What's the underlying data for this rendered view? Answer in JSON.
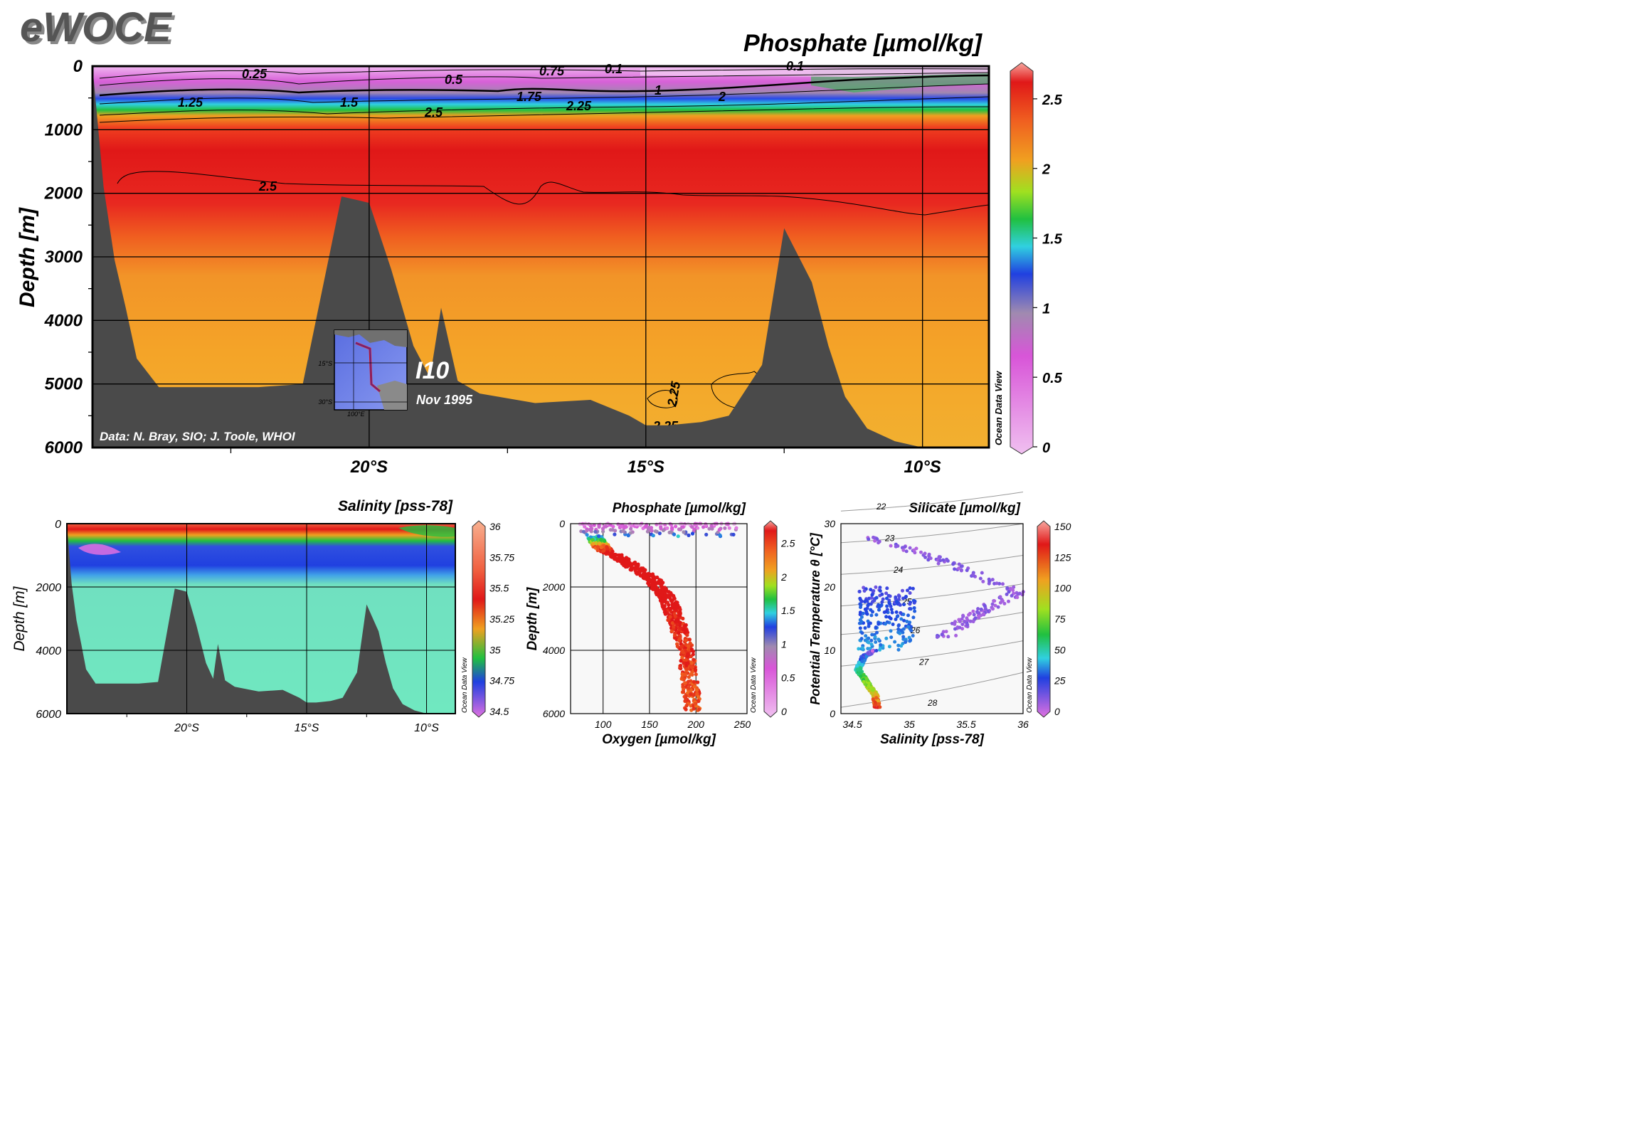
{
  "logo": "eWOCE",
  "colors": {
    "bathymetry": "#4a4a4a",
    "phosphate_scale": [
      "#e8a8e8",
      "#d855d8",
      "#a08ab0",
      "#2040e0",
      "#30d0e0",
      "#20c040",
      "#a0e020",
      "#f0a020",
      "#f06020",
      "#e01818",
      "#f8a8a8"
    ],
    "salinity_scale": [
      "#d855d8",
      "#2040e0",
      "#20c040",
      "#f0a020",
      "#e01818",
      "#f8b090"
    ]
  },
  "main_section": {
    "title": "Phosphate [µmol/kg]",
    "ylabel": "Depth [m]",
    "y_ticks": [
      "0",
      "1000",
      "2000",
      "3000",
      "4000",
      "5000",
      "6000"
    ],
    "x_ticks": [
      "20°S",
      "15°S",
      "10°S"
    ],
    "colorbar_ticks": [
      "2.5",
      "2",
      "1.5",
      "1",
      "0.5",
      "0"
    ],
    "contour_labels": [
      "0.25",
      "0.5",
      "0.75",
      "0.1",
      "0.1",
      "1.25",
      "1.5",
      "1",
      "1.75",
      "2.25",
      "2",
      "2.5",
      "2.5",
      "2.25",
      "2.25"
    ],
    "credit": "Data: N. Bray, SIO; J. Toole, WHOI",
    "section_name": "I10",
    "section_date": "Nov 1995",
    "odv_label": "Ocean Data View",
    "inset": {
      "lat_labels": [
        "15°S",
        "30°S"
      ],
      "lon_label": "100°E"
    }
  },
  "salinity_section": {
    "title": "Salinity [pss-78]",
    "ylabel": "Depth [m]",
    "y_ticks": [
      "0",
      "2000",
      "4000",
      "6000"
    ],
    "x_ticks": [
      "20°S",
      "15°S",
      "10°S"
    ],
    "colorbar_ticks": [
      "36",
      "35.75",
      "35.5",
      "35.25",
      "35",
      "34.75",
      "34.5"
    ],
    "odv_label": "Ocean Data View"
  },
  "oxygen_plot": {
    "title": "Phosphate [µmol/kg]",
    "ylabel": "Depth [m]",
    "xlabel": "Oxygen [µmol/kg]",
    "y_ticks": [
      "0",
      "2000",
      "4000",
      "6000"
    ],
    "x_ticks": [
      "100",
      "150",
      "200",
      "250"
    ],
    "colorbar_ticks": [
      "2.5",
      "2",
      "1.5",
      "1",
      "0.5",
      "0"
    ],
    "odv_label": "Ocean Data View"
  },
  "ts_plot": {
    "title": "Silicate [µmol/kg]",
    "ylabel": "Potential Temperature θ [°C]",
    "xlabel": "Salinity [pss-78]",
    "y_ticks": [
      "30",
      "20",
      "10",
      "0"
    ],
    "x_ticks": [
      "34.5",
      "35",
      "35.5",
      "36"
    ],
    "colorbar_ticks": [
      "150",
      "125",
      "100",
      "75",
      "50",
      "25",
      "0"
    ],
    "isopycnal_labels": [
      "22",
      "23",
      "24",
      "25",
      "26",
      "27",
      "28"
    ],
    "odv_label": "Ocean Data View"
  },
  "chart_data": [
    {
      "type": "heatmap",
      "title": "Phosphate [µmol/kg]",
      "ylabel": "Depth [m]",
      "xlabel": "",
      "xlim": [
        "25°S",
        "8.8°S"
      ],
      "ylim": [
        0,
        6000
      ],
      "colorbar_range": [
        0,
        2.75
      ],
      "grid": true,
      "bathymetry_profile": {
        "lat_S": [
          25.0,
          24.8,
          24.6,
          24.4,
          24.2,
          23.8,
          22.0,
          21.2,
          20.5,
          20.0,
          19.6,
          19.2,
          18.9,
          18.7,
          18.4,
          18.0,
          17.0,
          16.0,
          15.3,
          15.0,
          14.6,
          14.0,
          13.5,
          12.9,
          12.5,
          12.0,
          11.7,
          11.4,
          11.0,
          10.5,
          10.0,
          9.5,
          8.8
        ],
        "depth_m": [
          0,
          1900,
          3050,
          3800,
          4600,
          5050,
          5050,
          5000,
          2050,
          2150,
          3200,
          4400,
          4900,
          3800,
          4950,
          5150,
          5300,
          5250,
          5500,
          5650,
          5650,
          5600,
          5500,
          4700,
          2550,
          3400,
          4400,
          5200,
          5700,
          5900,
          6000,
          6000,
          6000
        ]
      },
      "phosphate_profile": {
        "depth_m": [
          0,
          200,
          500,
          700,
          1000,
          1500,
          2000,
          2500,
          3000,
          4000,
          5000,
          6000
        ],
        "value": [
          0.1,
          0.4,
          1.3,
          2.2,
          2.6,
          2.7,
          2.65,
          2.55,
          2.45,
          2.35,
          2.3,
          2.25
        ]
      }
    },
    {
      "type": "heatmap",
      "title": "Salinity [pss-78]",
      "ylabel": "Depth [m]",
      "ylim": [
        0,
        6000
      ],
      "colorbar_range": [
        34.5,
        36
      ],
      "salinity_profile": {
        "depth_m": [
          0,
          100,
          300,
          600,
          1000,
          1500,
          2000,
          6000
        ],
        "value": [
          35.2,
          35.4,
          35.3,
          34.9,
          34.6,
          34.65,
          34.72,
          34.72
        ]
      }
    },
    {
      "type": "scatter",
      "title": "Phosphate [µmol/kg]",
      "xlabel": "Oxygen [µmol/kg]",
      "ylabel": "Depth [m]",
      "xlim": [
        65,
        255
      ],
      "ylim": [
        6000,
        0
      ],
      "color_variable": "Phosphate [µmol/kg]",
      "color_range": [
        0,
        2.75
      ],
      "trend": {
        "depth_m": [
          0,
          200,
          400,
          800,
          1200,
          1800,
          2400,
          3000,
          3600,
          4200,
          4800,
          5400,
          6000
        ],
        "oxygen": [
          215,
          160,
          90,
          100,
          125,
          155,
          170,
          178,
          185,
          190,
          192,
          195,
          197
        ]
      }
    },
    {
      "type": "scatter",
      "title": "Silicate [µmol/kg]",
      "xlabel": "Salinity [pss-78]",
      "ylabel": "Potential Temperature θ [°C]",
      "xlim": [
        34.4,
        36
      ],
      "ylim": [
        0,
        30
      ],
      "color_variable": "Silicate [µmol/kg]",
      "color_range": [
        0,
        150
      ],
      "isopycnals": [
        "22",
        "23",
        "24",
        "25",
        "26",
        "27",
        "28"
      ],
      "trend": {
        "salinity": [
          34.72,
          34.7,
          34.6,
          34.5,
          34.8,
          35.2,
          35.6,
          35.95
        ],
        "theta": [
          1,
          3,
          5,
          7,
          9,
          12,
          16,
          19
        ]
      }
    }
  ]
}
